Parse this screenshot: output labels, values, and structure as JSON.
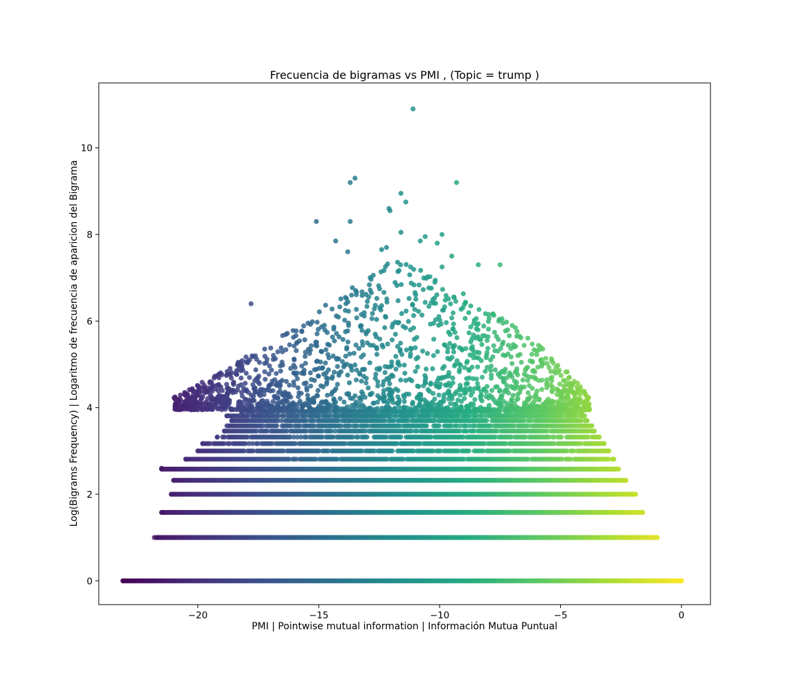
{
  "chart_data": {
    "type": "scatter",
    "title": "Frecuencia de bigramas vs PMI ,  (Topic = trump )",
    "xlabel": "PMI | Pointwise mutual information | Información Mutua Puntual",
    "ylabel": "Log(Bigrams Frequency) | Logaritmo de frecuencia de aparicion del Bigrama",
    "xlim": [
      -24.1,
      1.2
    ],
    "ylim": [
      -0.55,
      11.5
    ],
    "xticks": [
      {
        "value": -20,
        "label": "−20"
      },
      {
        "value": -15,
        "label": "−15"
      },
      {
        "value": -10,
        "label": "−10"
      },
      {
        "value": -5,
        "label": "−5"
      },
      {
        "value": 0,
        "label": "0"
      }
    ],
    "yticks": [
      {
        "value": 0,
        "label": "0"
      },
      {
        "value": 2,
        "label": "2"
      },
      {
        "value": 4,
        "label": "4"
      },
      {
        "value": 6,
        "label": "6"
      },
      {
        "value": 8,
        "label": "8"
      },
      {
        "value": 10,
        "label": "10"
      }
    ],
    "color_by": "x",
    "colormap": "viridis",
    "grid": false,
    "legend": false,
    "point_opacity": 0.85,
    "bands": [
      {
        "y": 0,
        "x_min": -23.1,
        "x_max": 0
      },
      {
        "y": 1,
        "x_min": -21.7,
        "x_max": -1
      },
      {
        "y": 1.58,
        "x_min": -21.5,
        "x_max": -1.6
      },
      {
        "y": 2,
        "x_min": -21.1,
        "x_max": -1.9
      },
      {
        "y": 2.32,
        "x_min": -21.0,
        "x_max": -2.3
      },
      {
        "y": 2.58,
        "x_min": -21.5,
        "x_max": -2.6
      },
      {
        "y": 2.81,
        "x_min": -20.5,
        "x_max": -2.8
      },
      {
        "y": 3,
        "x_min": -20.0,
        "x_max": -3.0
      },
      {
        "y": 3.17,
        "x_min": -19.8,
        "x_max": -3.2
      },
      {
        "y": 3.32,
        "x_min": -19.2,
        "x_max": -3.4
      },
      {
        "y": 3.46,
        "x_min": -18.9,
        "x_max": -3.6
      },
      {
        "y": 3.58,
        "x_min": -18.8,
        "x_max": -3.7
      },
      {
        "y": 3.7,
        "x_min": -18.6,
        "x_max": -3.9
      },
      {
        "y": 3.81,
        "x_min": -18.8,
        "x_max": -4.0
      },
      {
        "y": 3.91,
        "x_min": -18.2,
        "x_max": -4.1
      }
    ],
    "scattered": {
      "y_min": 3.95,
      "x_min": -21.0,
      "x_max": -3.8,
      "peak_x": -11.5,
      "peak_y": 7.3
    },
    "notable_points": [
      {
        "x": -11.1,
        "y": 10.9
      },
      {
        "x": -13.5,
        "y": 9.3
      },
      {
        "x": -13.7,
        "y": 9.2
      },
      {
        "x": -9.3,
        "y": 9.2
      },
      {
        "x": -11.6,
        "y": 8.95
      },
      {
        "x": -11.4,
        "y": 8.75
      },
      {
        "x": -12.1,
        "y": 8.6
      },
      {
        "x": -12.05,
        "y": 8.55
      },
      {
        "x": -15.1,
        "y": 8.3
      },
      {
        "x": -13.7,
        "y": 8.3
      },
      {
        "x": -11.6,
        "y": 8.05
      },
      {
        "x": -10.6,
        "y": 7.95
      },
      {
        "x": -9.9,
        "y": 8.0
      },
      {
        "x": -10.8,
        "y": 7.85
      },
      {
        "x": -10.1,
        "y": 7.8
      },
      {
        "x": -14.3,
        "y": 7.85
      },
      {
        "x": -13.8,
        "y": 7.6
      },
      {
        "x": -12.2,
        "y": 7.7
      },
      {
        "x": -12.4,
        "y": 7.65
      },
      {
        "x": -9.5,
        "y": 7.5
      },
      {
        "x": -8.4,
        "y": 7.3
      },
      {
        "x": -7.5,
        "y": 7.3
      },
      {
        "x": -11.2,
        "y": 7.25
      },
      {
        "x": -9.9,
        "y": 7.25
      },
      {
        "x": -17.8,
        "y": 6.4
      },
      {
        "x": -21.5,
        "y": 2.6
      },
      {
        "x": -20.2,
        "y": 4.1
      },
      {
        "x": -19.5,
        "y": 4.6
      },
      {
        "x": -21.8,
        "y": 1.0
      }
    ]
  }
}
